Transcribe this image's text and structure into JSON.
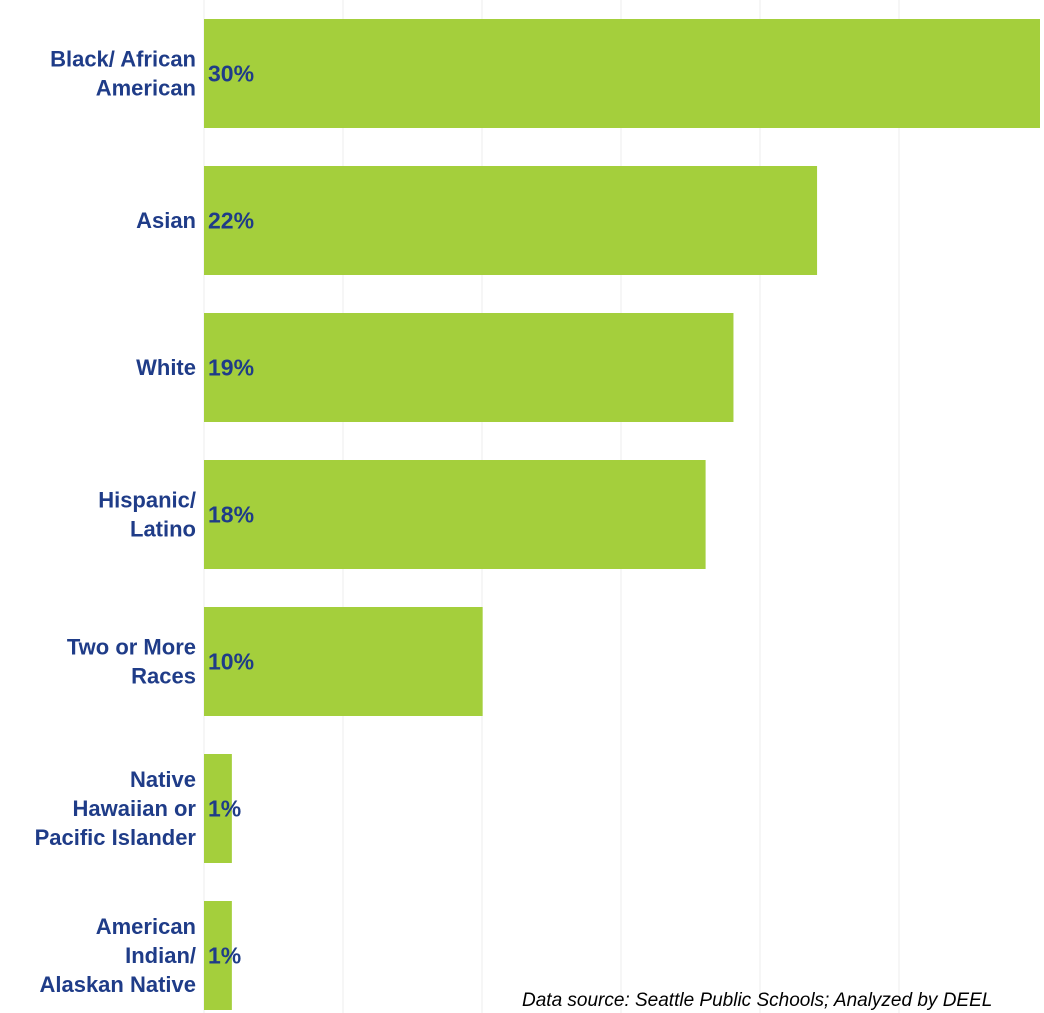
{
  "chart_data": {
    "type": "bar",
    "orientation": "horizontal",
    "categories": [
      [
        "Black/ African",
        "American"
      ],
      [
        "Asian"
      ],
      [
        "White"
      ],
      [
        "Hispanic/",
        "Latino"
      ],
      [
        "Two or More",
        "Races"
      ],
      [
        "Native",
        "Hawaiian or",
        "Pacific Islander"
      ],
      [
        "American",
        "Indian/",
        "Alaskan Native"
      ]
    ],
    "values": [
      30,
      22,
      19,
      18,
      10,
      1,
      1
    ],
    "value_labels": [
      "30%",
      "22%",
      "19%",
      "18%",
      "10%",
      "1%",
      "1%"
    ],
    "xlim": [
      0,
      30
    ],
    "grid": true,
    "source": "Data source: Seattle Public Schools; Analyzed by DEEL"
  },
  "colors": {
    "bar": "#a4cf3c",
    "label": "#1f3c88",
    "grid": "#ececec"
  }
}
